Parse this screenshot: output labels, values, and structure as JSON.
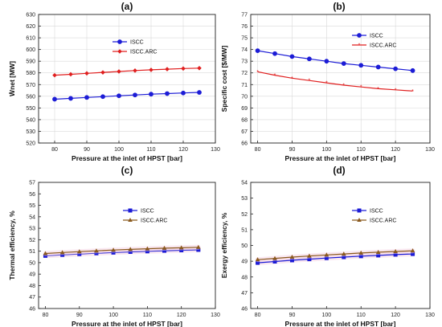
{
  "figure_labels": [
    "(a)",
    "(b)",
    "(c)",
    "(d)"
  ],
  "colors": {
    "iscc": "#1c1cd6",
    "iscc_arc_red": "#e01f1f",
    "iscc_arc_brown": "#8a5a1e",
    "band": "#f5d6e6",
    "grid": "#d9d9d9",
    "axis": "#222222"
  },
  "chart_data": [
    {
      "type": "line",
      "panel": "(a)",
      "ylabel": "Ẇnet [MW]",
      "xlabel": "Pressure at the inlet of HPST [bar]",
      "xlim": [
        75,
        130
      ],
      "ylim": [
        520,
        630
      ],
      "xticks": [
        "80",
        "90",
        "100",
        "110",
        "120",
        "130"
      ],
      "yticks": [
        "520",
        "530",
        "540",
        "550",
        "560",
        "570",
        "580",
        "590",
        "600",
        "610",
        "620",
        "630"
      ],
      "grid": true,
      "legend_position": "top-right",
      "x": [
        80,
        85,
        90,
        95,
        100,
        105,
        110,
        115,
        120,
        125
      ],
      "series": [
        {
          "name": "ISCC",
          "marker": "circle",
          "values": [
            557.5,
            558.2,
            559.0,
            559.7,
            560.4,
            561.1,
            561.8,
            562.3,
            562.8,
            563.3
          ]
        },
        {
          "name": "ISCC.ARC",
          "marker": "diamond",
          "values": [
            578.0,
            578.8,
            579.6,
            580.4,
            581.2,
            582.0,
            582.6,
            583.2,
            583.7,
            584.1
          ]
        }
      ]
    },
    {
      "type": "line",
      "panel": "(b)",
      "ylabel": "Specific cost [$/MW]",
      "xlabel": "Pressure at the inlet of HPST [bar]",
      "xlim": [
        78,
        130
      ],
      "ylim": [
        66,
        77
      ],
      "xticks": [
        "80",
        "90",
        "100",
        "110",
        "120",
        "130"
      ],
      "yticks": [
        "66",
        "67",
        "68",
        "69",
        "70",
        "71",
        "72",
        "73",
        "74",
        "75",
        "76",
        "77"
      ],
      "grid": true,
      "legend_position": "top-right",
      "x": [
        80,
        85,
        90,
        95,
        100,
        105,
        110,
        115,
        120,
        125
      ],
      "series": [
        {
          "name": "ISCC",
          "marker": "circle",
          "values": [
            73.9,
            73.65,
            73.4,
            73.2,
            73.0,
            72.8,
            72.65,
            72.5,
            72.35,
            72.2
          ]
        },
        {
          "name": "ISCC.ARC",
          "marker": "star",
          "values": [
            72.1,
            71.8,
            71.55,
            71.35,
            71.15,
            70.95,
            70.8,
            70.65,
            70.55,
            70.45
          ]
        }
      ]
    },
    {
      "type": "line",
      "panel": "(c)",
      "ylabel": "Thermal efficiency, %",
      "xlabel": "Pressure at the inlet of HPST [bar]",
      "xlim": [
        78,
        130
      ],
      "ylim": [
        46,
        57
      ],
      "xticks": [
        "80",
        "90",
        "100",
        "110",
        "120",
        "130"
      ],
      "yticks": [
        "46",
        "47",
        "48",
        "49",
        "50",
        "51",
        "52",
        "53",
        "54",
        "55",
        "56",
        "57"
      ],
      "grid": false,
      "legend_position": "top-right",
      "x": [
        80,
        85,
        90,
        95,
        100,
        105,
        110,
        115,
        120,
        125
      ],
      "series": [
        {
          "name": "ISCC",
          "marker": "square",
          "values": [
            50.6,
            50.68,
            50.75,
            50.82,
            50.88,
            50.94,
            50.99,
            51.04,
            51.08,
            51.12
          ]
        },
        {
          "name": "ISCC.ARC",
          "marker": "triangle",
          "values": [
            50.8,
            50.88,
            50.96,
            51.03,
            51.1,
            51.16,
            51.21,
            51.26,
            51.3,
            51.34
          ]
        }
      ]
    },
    {
      "type": "line",
      "panel": "(d)",
      "ylabel": "Exergy efficiency, %",
      "xlabel": "Pressure at the inlet of HPST [bar]",
      "xlim": [
        78,
        130
      ],
      "ylim": [
        46,
        54
      ],
      "xticks": [
        "80",
        "90",
        "100",
        "110",
        "120",
        "130"
      ],
      "yticks": [
        "46",
        "47",
        "48",
        "49",
        "50",
        "51",
        "52",
        "53",
        "54"
      ],
      "grid": false,
      "legend_position": "top-right",
      "x": [
        80,
        85,
        90,
        95,
        100,
        105,
        110,
        115,
        120,
        125
      ],
      "series": [
        {
          "name": "ISCC",
          "marker": "square",
          "values": [
            48.9,
            48.98,
            49.06,
            49.13,
            49.2,
            49.26,
            49.32,
            49.37,
            49.42,
            49.46
          ]
        },
        {
          "name": "ISCC.ARC",
          "marker": "triangle",
          "values": [
            49.1,
            49.18,
            49.26,
            49.33,
            49.4,
            49.46,
            49.52,
            49.57,
            49.62,
            49.66
          ]
        }
      ]
    }
  ]
}
